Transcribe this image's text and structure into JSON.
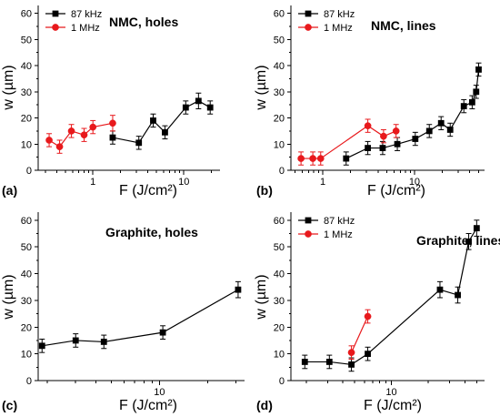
{
  "chart_data": [
    {
      "type": "scatter",
      "panel_label": "(a)",
      "title": "NMC, holes",
      "xlabel": "F (J/cm²)",
      "ylabel": "w (µm)",
      "xscale": "log",
      "xlim": [
        0.25,
        25
      ],
      "ylim": [
        0,
        63
      ],
      "xtick_values": [
        1,
        10
      ],
      "xtick_labels": [
        "1",
        "10"
      ],
      "ytick_values": [
        0,
        10,
        20,
        30,
        40,
        50,
        60
      ],
      "ytick_labels": [
        "0",
        "10",
        "20",
        "30",
        "40",
        "50",
        "60"
      ],
      "legend_position": "top-left",
      "series": [
        {
          "name": "87 kHz",
          "color": "#000000",
          "marker": "square",
          "x": [
            1.65,
            3.2,
            4.6,
            6.2,
            10.5,
            14.5,
            19.5
          ],
          "y": [
            12.5,
            10.5,
            19,
            14.5,
            24,
            26.5,
            24
          ],
          "err": [
            2.5,
            2.5,
            2.5,
            2.5,
            2.5,
            3,
            2.5
          ]
        },
        {
          "name": "1 MHz",
          "color": "#e8191c",
          "marker": "circle",
          "x": [
            0.33,
            0.43,
            0.58,
            0.8,
            1.0,
            1.65
          ],
          "y": [
            11.5,
            9,
            15,
            13.5,
            16.5,
            18
          ],
          "err": [
            2.5,
            2.5,
            2.5,
            2.5,
            2.5,
            3
          ]
        }
      ]
    },
    {
      "type": "scatter",
      "panel_label": "(b)",
      "title": "NMC, lines",
      "xlabel": "F (J/cm²)",
      "ylabel": "w (µm)",
      "xscale": "log",
      "xlim": [
        0.45,
        58
      ],
      "ylim": [
        0,
        63
      ],
      "xtick_values": [
        1,
        10
      ],
      "xtick_labels": [
        "1",
        "10"
      ],
      "ytick_values": [
        0,
        10,
        20,
        30,
        40,
        50,
        60
      ],
      "ytick_labels": [
        "0",
        "10",
        "20",
        "30",
        "40",
        "50",
        "60"
      ],
      "legend_position": "top-left",
      "series": [
        {
          "name": "87 kHz",
          "color": "#000000",
          "marker": "square",
          "x": [
            1.8,
            3.1,
            4.5,
            6.5,
            10.2,
            14.5,
            19.5,
            24.5,
            34.5,
            42.5,
            47.0,
            50.0
          ],
          "y": [
            4.5,
            8.5,
            8.5,
            10,
            12,
            15,
            18,
            15.5,
            24.5,
            26,
            30,
            38.5
          ],
          "err": [
            2.5,
            2.5,
            2.5,
            2.5,
            2.5,
            2.5,
            2.5,
            2.5,
            2.5,
            2.5,
            2.5,
            2.5
          ]
        },
        {
          "name": "1 MHz",
          "color": "#e8191c",
          "marker": "circle",
          "x": [
            0.58,
            0.78,
            0.95,
            3.1,
            4.6,
            6.3
          ],
          "y": [
            4.5,
            4.5,
            4.5,
            17,
            13,
            15
          ],
          "err": [
            2.5,
            2.5,
            2.5,
            2.5,
            2.5,
            2.5
          ]
        }
      ]
    },
    {
      "type": "scatter",
      "panel_label": "(c)",
      "title": "Graphite, holes",
      "xlabel": "F (J/cm²)",
      "ylabel": "w (µm)",
      "xscale": "log",
      "xlim": [
        1.75,
        34
      ],
      "ylim": [
        0,
        63
      ],
      "xtick_values": [
        10
      ],
      "xtick_labels": [
        "10"
      ],
      "ytick_values": [
        0,
        10,
        20,
        30,
        40,
        50,
        60
      ],
      "ytick_labels": [
        "0",
        "10",
        "20",
        "30",
        "40",
        "50",
        "60"
      ],
      "legend_position": "",
      "series": [
        {
          "name": "",
          "color": "#000000",
          "marker": "square",
          "x": [
            1.85,
            3.0,
            4.5,
            10.5,
            31.0
          ],
          "y": [
            13,
            15,
            14.5,
            18,
            34
          ],
          "err": [
            2.5,
            2.5,
            2.5,
            2.5,
            3
          ]
        }
      ]
    },
    {
      "type": "scatter",
      "panel_label": "(d)",
      "title": "Graphite, lines",
      "xlabel": "F (J/cm²)",
      "ylabel": "w (µm)",
      "xscale": "log",
      "xlim": [
        1.5,
        58
      ],
      "ylim": [
        0,
        63
      ],
      "xtick_values": [
        10
      ],
      "xtick_labels": [
        "10"
      ],
      "ytick_values": [
        0,
        10,
        20,
        30,
        40,
        50,
        60
      ],
      "ytick_labels": [
        "0",
        "10",
        "20",
        "30",
        "40",
        "50",
        "60"
      ],
      "legend_position": "top-left",
      "series": [
        {
          "name": "87 kHz",
          "color": "#000000",
          "marker": "square",
          "x": [
            1.95,
            3.1,
            4.7,
            6.4,
            25.0,
            35.0,
            43.0,
            50.0
          ],
          "y": [
            7,
            7,
            6,
            10,
            34,
            32,
            52,
            57
          ],
          "err": [
            2.5,
            2.5,
            2.5,
            2.5,
            3,
            3,
            3,
            3
          ]
        },
        {
          "name": "1 MHz",
          "color": "#e8191c",
          "marker": "circle",
          "x": [
            4.7,
            6.4
          ],
          "y": [
            10.5,
            24
          ],
          "err": [
            2.5,
            2.5
          ]
        }
      ]
    }
  ]
}
